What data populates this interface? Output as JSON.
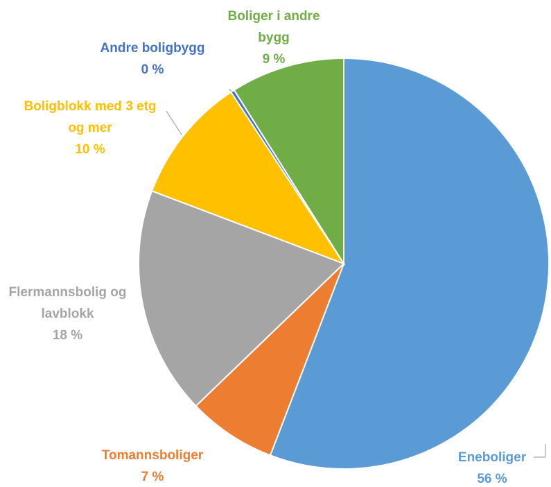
{
  "chart_data": {
    "type": "pie",
    "categories": [
      "Eneboliger",
      "Tomannsboliger",
      "Flermannsbolig og lavblokk",
      "Boligblokk med 3 etg og mer",
      "Andre boligbygg",
      "Boliger i andre bygg"
    ],
    "values": [
      56,
      7,
      18,
      10,
      0.3,
      9
    ],
    "value_labels": [
      "56 %",
      "7 %",
      "18 %",
      "10 %",
      "0 %",
      "9 %"
    ],
    "colors": [
      "#5b9bd5",
      "#ed7d31",
      "#a5a5a5",
      "#ffc000",
      "#4472c4",
      "#70ad47"
    ]
  }
}
